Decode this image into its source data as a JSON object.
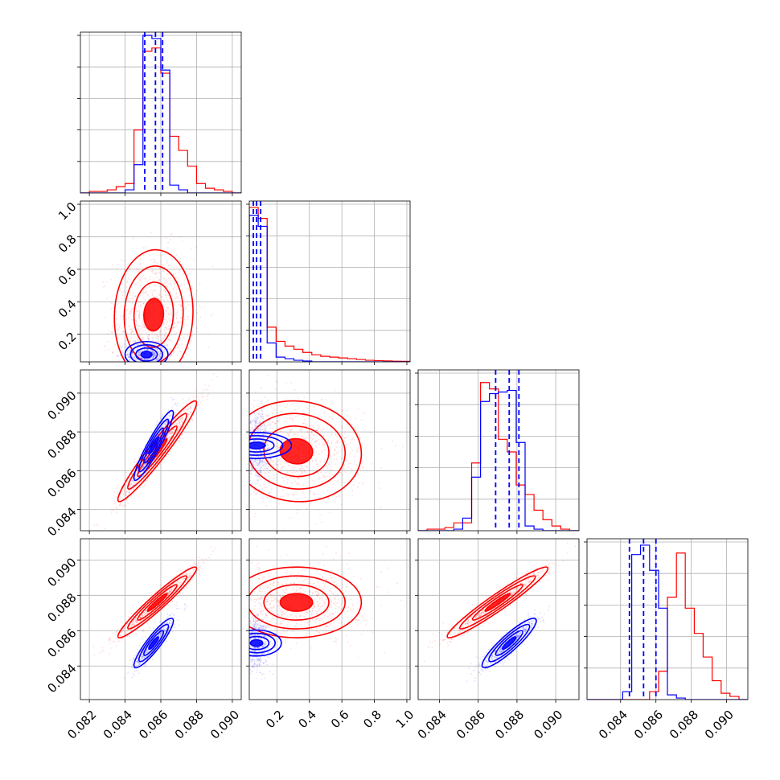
{
  "chart_data": {
    "type": "corner",
    "colors": {
      "series_a": "#0000ff",
      "series_b": "#ff0000",
      "grid": "#b0b0b0",
      "frame": "#000000"
    },
    "params": [
      {
        "range": [
          0.0815,
          0.0905
        ],
        "ticks": [
          0.082,
          0.084,
          0.086,
          0.088,
          0.09
        ],
        "tick_labels": [
          "0.082",
          "0.084",
          "0.086",
          "0.088",
          "0.090"
        ],
        "quantiles_a": [
          0.0851,
          0.0857,
          0.0861
        ]
      },
      {
        "range": [
          0.03,
          1.02
        ],
        "ticks": [
          0.2,
          0.4,
          0.6,
          0.8,
          1.0
        ],
        "tick_labels": [
          "0.2",
          "0.4",
          "0.6",
          "0.8",
          "1.0"
        ],
        "quantiles_a": [
          0.055,
          0.075,
          0.1
        ]
      },
      {
        "range": [
          0.0829,
          0.0912
        ],
        "ticks": [
          0.084,
          0.086,
          0.088,
          0.09
        ],
        "tick_labels": [
          "0.084",
          "0.086",
          "0.088",
          "0.090"
        ],
        "quantiles_a": [
          0.0869,
          0.0876,
          0.0881
        ]
      },
      {
        "range": [
          0.0821,
          0.0912
        ],
        "ticks": [
          0.084,
          0.086,
          0.088,
          0.09
        ],
        "tick_labels": [
          "0.084",
          "0.086",
          "0.088",
          "0.090"
        ],
        "quantiles_a": [
          0.0845,
          0.0853,
          0.086
        ]
      }
    ],
    "histograms": [
      {
        "edges": [
          0.0815,
          0.082,
          0.0825,
          0.083,
          0.0835,
          0.084,
          0.0845,
          0.085,
          0.0855,
          0.086,
          0.0865,
          0.087,
          0.0875,
          0.088,
          0.0885,
          0.089,
          0.0895,
          0.09,
          0.0905
        ],
        "a": [
          0,
          0,
          0,
          0,
          0,
          0.02,
          0.18,
          1.0,
          0.98,
          0.78,
          0.05,
          0.02,
          0,
          0,
          0,
          0,
          0,
          0
        ],
        "b": [
          0,
          0.01,
          0.01,
          0.02,
          0.04,
          0.06,
          0.4,
          0.9,
          0.92,
          0.76,
          0.36,
          0.27,
          0.17,
          0.06,
          0.03,
          0.02,
          0.01,
          0
        ],
        "ymax": 1.0
      },
      {
        "edges": [
          0.03,
          0.085,
          0.14,
          0.195,
          0.25,
          0.305,
          0.36,
          0.415,
          0.47,
          0.525,
          0.58,
          0.635,
          0.69,
          0.745,
          0.8,
          0.855,
          0.91,
          0.965,
          1.02
        ],
        "a": [
          0.93,
          0.86,
          0.12,
          0.03,
          0.02,
          0.01,
          0.005,
          0,
          0,
          0,
          0,
          0,
          0,
          0,
          0,
          0,
          0,
          0
        ],
        "b": [
          0.98,
          0.91,
          0.22,
          0.13,
          0.1,
          0.08,
          0.06,
          0.045,
          0.035,
          0.03,
          0.025,
          0.02,
          0.015,
          0.01,
          0.008,
          0.006,
          0.004,
          0.003
        ],
        "ymax": 1.0
      },
      {
        "edges": [
          0.0829,
          0.08336,
          0.08382,
          0.08428,
          0.08474,
          0.0852,
          0.08566,
          0.08612,
          0.08658,
          0.08704,
          0.0875,
          0.08796,
          0.08842,
          0.08888,
          0.08934,
          0.0898,
          0.09026,
          0.09072,
          0.0912
        ],
        "a": [
          0,
          0,
          0,
          0,
          0.01,
          0.08,
          0.34,
          0.82,
          0.87,
          0.88,
          0.89,
          0.56,
          0.03,
          0.01,
          0,
          0,
          0,
          0
        ],
        "b": [
          0,
          0.01,
          0.01,
          0.02,
          0.05,
          0.05,
          0.43,
          0.94,
          0.9,
          0.58,
          0.5,
          0.29,
          0.23,
          0.13,
          0.07,
          0.03,
          0.01,
          0
        ],
        "ymax": 1.0
      },
      {
        "edges": [
          0.0821,
          0.08261,
          0.08311,
          0.08362,
          0.08412,
          0.08463,
          0.08513,
          0.08564,
          0.08615,
          0.08665,
          0.08716,
          0.08766,
          0.08817,
          0.08867,
          0.08918,
          0.08969,
          0.09019,
          0.0907,
          0.0912
        ],
        "a": [
          0,
          0,
          0,
          0,
          0.05,
          0.92,
          0.98,
          0.82,
          0.58,
          0.03,
          0.01,
          0,
          0,
          0,
          0,
          0,
          0,
          0
        ],
        "b": [
          0,
          0,
          0,
          0,
          0,
          0,
          0,
          0.05,
          0.18,
          0.65,
          0.93,
          0.58,
          0.42,
          0.27,
          0.12,
          0.04,
          0.02,
          0
        ],
        "ymax": 1.0
      }
    ],
    "pairs": [
      {
        "row": 1,
        "col": 0,
        "a": {
          "mx": 0.0852,
          "sx": 0.0006,
          "my": 0.075,
          "sy": 0.04,
          "rho": 0.0
        },
        "b": {
          "mx": 0.0856,
          "sx": 0.0011,
          "my": 0.32,
          "sy": 0.2,
          "rho": 0.05
        }
      },
      {
        "row": 2,
        "col": 0,
        "a": {
          "mx": 0.0856,
          "sx": 0.00055,
          "my": 0.0873,
          "sy": 0.0009,
          "rho": 0.93
        },
        "b": {
          "mx": 0.0858,
          "sx": 0.0011,
          "my": 0.087,
          "sy": 0.0013,
          "rho": 0.96
        }
      },
      {
        "row": 2,
        "col": 1,
        "a": {
          "mx": 0.075,
          "sx": 0.04,
          "my": 0.0873,
          "sy": 0.0009,
          "rho": 0.0
        },
        "b": {
          "mx": 0.32,
          "sx": 0.2,
          "my": 0.087,
          "sy": 0.0013,
          "rho": -0.05
        }
      },
      {
        "row": 3,
        "col": 0,
        "a": {
          "mx": 0.0856,
          "sx": 0.00055,
          "my": 0.0853,
          "sy": 0.0007,
          "rho": 0.9
        },
        "b": {
          "mx": 0.0858,
          "sx": 0.0011,
          "my": 0.0876,
          "sy": 0.001,
          "rho": 0.96
        }
      },
      {
        "row": 3,
        "col": 1,
        "a": {
          "mx": 0.075,
          "sx": 0.04,
          "my": 0.0853,
          "sy": 0.0007,
          "rho": 0.0
        },
        "b": {
          "mx": 0.32,
          "sx": 0.2,
          "my": 0.0876,
          "sy": 0.001,
          "rho": 0.0
        }
      },
      {
        "row": 3,
        "col": 2,
        "a": {
          "mx": 0.0876,
          "sx": 0.0007,
          "my": 0.0853,
          "sy": 0.0007,
          "rho": 0.9
        },
        "b": {
          "mx": 0.087,
          "sx": 0.0013,
          "my": 0.0876,
          "sy": 0.001,
          "rho": 0.96
        }
      }
    ]
  }
}
